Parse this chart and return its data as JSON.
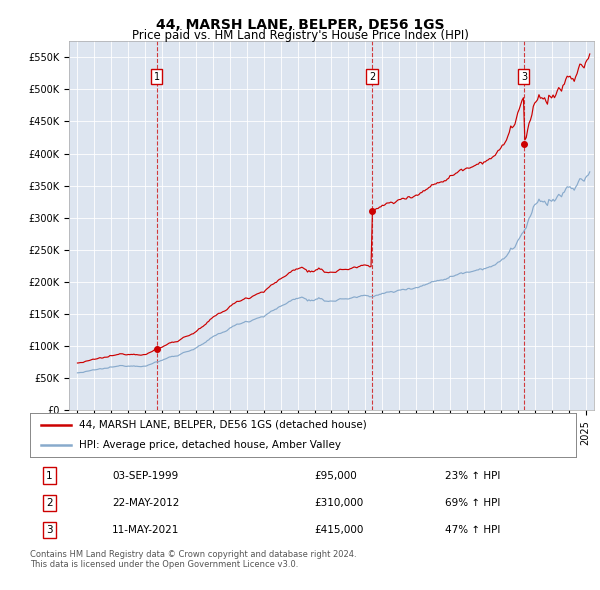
{
  "title": "44, MARSH LANE, BELPER, DE56 1GS",
  "subtitle": "Price paid vs. HM Land Registry's House Price Index (HPI)",
  "ylim": [
    0,
    575000
  ],
  "yticks": [
    0,
    50000,
    100000,
    150000,
    200000,
    250000,
    300000,
    350000,
    400000,
    450000,
    500000,
    550000
  ],
  "ytick_labels": [
    "£0",
    "£50K",
    "£100K",
    "£150K",
    "£200K",
    "£250K",
    "£300K",
    "£350K",
    "£400K",
    "£450K",
    "£500K",
    "£550K"
  ],
  "xlim_start": 1994.5,
  "xlim_end": 2025.5,
  "background_color": "#dde5f0",
  "outer_bg_color": "#ffffff",
  "red_line_color": "#cc0000",
  "blue_line_color": "#88aacc",
  "sale_dates": [
    1999.67,
    2012.39,
    2021.36
  ],
  "sale_prices": [
    95000,
    310000,
    415000
  ],
  "sale_labels": [
    "1",
    "2",
    "3"
  ],
  "sale_date_strings": [
    "03-SEP-1999",
    "22-MAY-2012",
    "11-MAY-2021"
  ],
  "sale_price_strings": [
    "£95,000",
    "£310,000",
    "£415,000"
  ],
  "sale_pct_strings": [
    "23% ↑ HPI",
    "69% ↑ HPI",
    "47% ↑ HPI"
  ],
  "legend_label_red": "44, MARSH LANE, BELPER, DE56 1GS (detached house)",
  "legend_label_blue": "HPI: Average price, detached house, Amber Valley",
  "footer_text": "Contains HM Land Registry data © Crown copyright and database right 2024.\nThis data is licensed under the Open Government Licence v3.0.",
  "title_fontsize": 10,
  "subtitle_fontsize": 8.5,
  "tick_fontsize": 7,
  "legend_fontsize": 7.5,
  "table_fontsize": 7.5,
  "footer_fontsize": 6
}
